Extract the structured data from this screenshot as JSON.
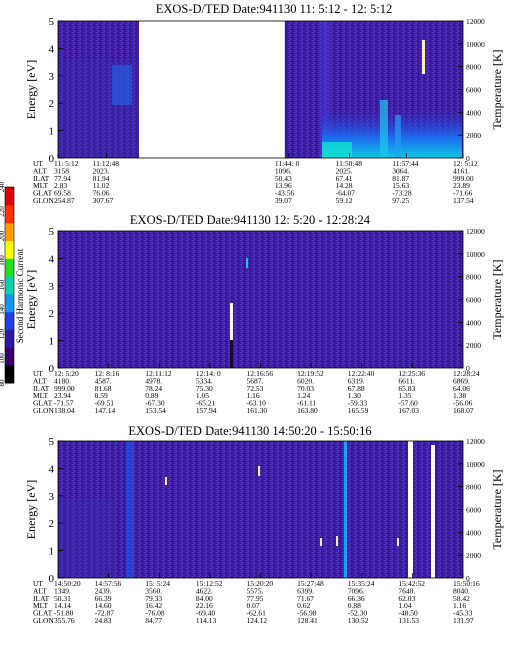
{
  "colorbar": {
    "label": "Second Harmonic Current",
    "ticks": [
      "80",
      "100",
      "120",
      "140",
      "160",
      "180",
      "200",
      "220",
      "240"
    ],
    "colors": [
      "#000000",
      "#3a006e",
      "#2b1ba8",
      "#2040e0",
      "#1496f0",
      "#10d0b0",
      "#20e020",
      "#ffff00",
      "#ff9900",
      "#ff3300",
      "#e00000"
    ]
  },
  "chart_data": [
    {
      "type": "heatmap",
      "title": "EXOS-D/TED   Date:941130  11: 5:12 - 12: 5:12",
      "ylabel": "Energy [eV]",
      "ylabel_right": "Temperature [K]",
      "ylim": [
        0,
        5
      ],
      "yticks": [
        "0",
        "1",
        "2",
        "3",
        "4",
        "5"
      ],
      "ylim_right": [
        0,
        12000
      ],
      "yticks_right": [
        "0",
        "2000",
        "4000",
        "6000",
        "8000",
        "10000",
        "12000"
      ],
      "data_gap": [
        0.2,
        0.56
      ],
      "row_labels": [
        "UT",
        "ALT",
        "ILAT",
        "MLT",
        "GLAT",
        "GLON"
      ],
      "columns": [
        {
          "pos": 0.0,
          "values": [
            "11: 5:12",
            "3158.",
            "77.94",
            "2.83",
            "69.58",
            "254.87"
          ]
        },
        {
          "pos": 0.12,
          "values": [
            "11:12:48",
            "2023.",
            "81.94",
            "11.02",
            "76.06",
            "307.67"
          ]
        },
        {
          "pos": 0.57,
          "values": [
            "11:44: 0",
            "1096.",
            "50.43",
            "13.96",
            "-43.56",
            "39.07"
          ]
        },
        {
          "pos": 0.72,
          "values": [
            "11:50:48",
            "2025.",
            "67.41",
            "14.28",
            "-64.07",
            "59.12"
          ]
        },
        {
          "pos": 0.86,
          "values": [
            "11:57:44",
            "3064.",
            "81.87",
            "15.63",
            "-73.28",
            "97.25"
          ]
        },
        {
          "pos": 1.0,
          "values": [
            "12: 5:12",
            "4161.",
            "999.00",
            "23.89",
            "-71.66",
            "137.54"
          ]
        }
      ]
    },
    {
      "type": "heatmap",
      "title": "EXOS-D/TED   Date:941130  12: 5:20 - 12:28:24",
      "ylabel": "Energy [eV]",
      "ylabel_right": "Temperature [K]",
      "ylim": [
        0,
        5
      ],
      "yticks": [
        "0",
        "1",
        "2",
        "3",
        "4",
        "5"
      ],
      "ylim_right": [
        0,
        12000
      ],
      "yticks_right": [
        "0",
        "2000",
        "4000",
        "6000",
        "8000",
        "10000",
        "12000"
      ],
      "row_labels": [
        "UT",
        "ALT",
        "ILAT",
        "MLT",
        "GLAT",
        "GLON"
      ],
      "columns": [
        {
          "pos": 0.0,
          "values": [
            "12: 5:20",
            "4180.",
            "999.00",
            "23.94",
            "-71.57",
            "138.04"
          ]
        },
        {
          "pos": 0.125,
          "values": [
            "12: 8:16",
            "4587.",
            "81.68",
            "0.59",
            "-69.51",
            "147.14"
          ]
        },
        {
          "pos": 0.25,
          "values": [
            "12:11:12",
            "4978.",
            "78.24",
            "0.89",
            "-67.30",
            "153.54"
          ]
        },
        {
          "pos": 0.375,
          "values": [
            "12:14: 0",
            "5334.",
            "75.30",
            "1.05",
            "-65.21",
            "157.94"
          ]
        },
        {
          "pos": 0.5,
          "values": [
            "12:16:56",
            "5687.",
            "72.53",
            "1.16",
            "-63.10",
            "161.30"
          ]
        },
        {
          "pos": 0.625,
          "values": [
            "12:19:52",
            "6020.",
            "70.03",
            "1.24",
            "-61.11",
            "163.80"
          ]
        },
        {
          "pos": 0.75,
          "values": [
            "12:22:40",
            "6319.",
            "67.88",
            "1.30",
            "-59.33",
            "165.59"
          ]
        },
        {
          "pos": 0.875,
          "values": [
            "12:25:36",
            "6611.",
            "65.83",
            "1.35",
            "-57.60",
            "167.03"
          ]
        },
        {
          "pos": 1.0,
          "values": [
            "12:28:24",
            "6869.",
            "64.06",
            "1.38",
            "-56.06",
            "168.07"
          ]
        }
      ]
    },
    {
      "type": "heatmap",
      "title": "EXOS-D/TED   Date:941130  14:50:20 - 15:50:16",
      "ylabel": "Energy [eV]",
      "ylabel_right": "Temperature [K]",
      "ylim": [
        0,
        5
      ],
      "yticks": [
        "0",
        "1",
        "2",
        "3",
        "4",
        "5"
      ],
      "ylim_right": [
        0,
        12000
      ],
      "yticks_right": [
        "0",
        "2000",
        "4000",
        "6000",
        "8000",
        "10000",
        "12000"
      ],
      "row_labels": [
        "UT",
        "ALT",
        "ILAT",
        "MLT",
        "GLAT",
        "GLON"
      ],
      "columns": [
        {
          "pos": 0.0,
          "values": [
            "14:50:20",
            "1349.",
            "50.31",
            "14.14",
            "-51.80",
            "355.76"
          ]
        },
        {
          "pos": 0.125,
          "values": [
            "14:57:56",
            "2439.",
            "66.39",
            "14.60",
            "-72.87",
            "24.83"
          ]
        },
        {
          "pos": 0.25,
          "values": [
            "15: 5:24",
            "3560.",
            "79.33",
            "16.42",
            "-76.08",
            "84.77"
          ]
        },
        {
          "pos": 0.375,
          "values": [
            "15:12:52",
            "4622.",
            "84.00",
            "22.16",
            "-69.40",
            "114.13"
          ]
        },
        {
          "pos": 0.5,
          "values": [
            "15:20:20",
            "5575.",
            "77.95",
            "0.07",
            "-62.61",
            "124.12"
          ]
        },
        {
          "pos": 0.625,
          "values": [
            "15:27:48",
            "6399.",
            "71.67",
            "0.62",
            "-56.98",
            "128.41"
          ]
        },
        {
          "pos": 0.75,
          "values": [
            "15:35:24",
            "7096.",
            "66.36",
            "0.88",
            "-52.30",
            "130.52"
          ]
        },
        {
          "pos": 0.875,
          "values": [
            "15:42:52",
            "7640.",
            "62.03",
            "1.04",
            "-48.50",
            "131.53"
          ]
        },
        {
          "pos": 1.0,
          "values": [
            "15:50:16",
            "8040.",
            "58.42",
            "1.16",
            "-45.33",
            "131.97"
          ]
        }
      ]
    }
  ]
}
